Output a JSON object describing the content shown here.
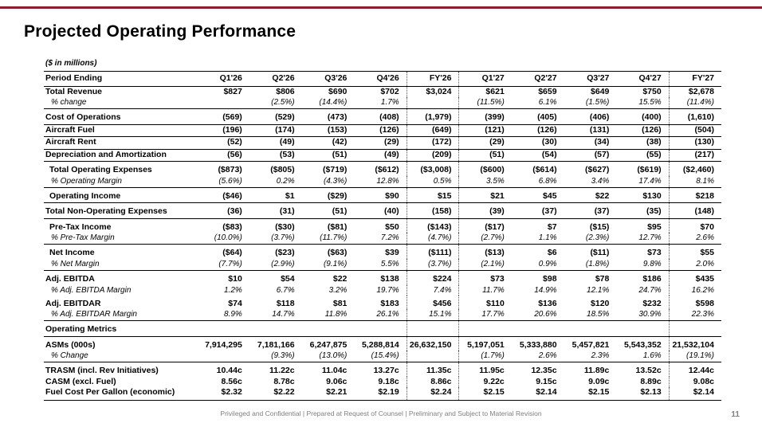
{
  "accent_color": "#8b1d2e",
  "title": "Projected Operating Performance",
  "units_note": "($ in millions)",
  "table": {
    "columns": [
      "Period Ending",
      "Q1'26",
      "Q2'26",
      "Q3'26",
      "Q4'26",
      "FY'26",
      "Q1'27",
      "Q2'27",
      "Q3'27",
      "Q4'27",
      "FY'27"
    ],
    "rows": [
      {
        "label": "Total Revenue",
        "type": "data",
        "values": [
          "$827",
          "$806",
          "$690",
          "$702",
          "$3,024",
          "$621",
          "$659",
          "$649",
          "$750",
          "$2,678"
        ]
      },
      {
        "label": "% change",
        "type": "pct",
        "rule_below": true,
        "values": [
          "",
          "(2.5%)",
          "(14.4%)",
          "1.7%",
          "",
          "(11.5%)",
          "6.1%",
          "(1.5%)",
          "15.5%",
          "(11.4%)"
        ]
      },
      {
        "label": "Cost of Operations",
        "type": "data",
        "gap": true,
        "rule_below": true,
        "values": [
          "(569)",
          "(529)",
          "(473)",
          "(408)",
          "(1,979)",
          "(399)",
          "(405)",
          "(406)",
          "(400)",
          "(1,610)"
        ]
      },
      {
        "label": "Aircraft Fuel",
        "type": "data",
        "rule_below": true,
        "values": [
          "(196)",
          "(174)",
          "(153)",
          "(126)",
          "(649)",
          "(121)",
          "(126)",
          "(131)",
          "(126)",
          "(504)"
        ]
      },
      {
        "label": "Aircraft Rent",
        "type": "data",
        "rule_below": true,
        "values": [
          "(52)",
          "(49)",
          "(42)",
          "(29)",
          "(172)",
          "(29)",
          "(30)",
          "(34)",
          "(38)",
          "(130)"
        ]
      },
      {
        "label": "Depreciation and Amortization",
        "type": "data",
        "rule_below": true,
        "values": [
          "(56)",
          "(53)",
          "(51)",
          "(49)",
          "(209)",
          "(51)",
          "(54)",
          "(57)",
          "(55)",
          "(217)"
        ]
      },
      {
        "label": "Total Operating Expenses",
        "type": "subtotal",
        "gap": true,
        "values": [
          "($873)",
          "($805)",
          "($719)",
          "($612)",
          "($3,008)",
          "($600)",
          "($614)",
          "($627)",
          "($619)",
          "($2,460)"
        ]
      },
      {
        "label": "% Operating Margin",
        "type": "pct",
        "rule_below": true,
        "values": [
          "(5.6%)",
          "0.2%",
          "(4.3%)",
          "12.8%",
          "0.5%",
          "3.5%",
          "6.8%",
          "3.4%",
          "17.4%",
          "8.1%"
        ]
      },
      {
        "label": "Operating Income",
        "type": "subtotal",
        "gap": true,
        "rule_below": true,
        "values": [
          "($46)",
          "$1",
          "($29)",
          "$90",
          "$15",
          "$21",
          "$45",
          "$22",
          "$130",
          "$218"
        ]
      },
      {
        "label": "Total Non-Operating Expenses",
        "type": "data",
        "gap": true,
        "rule_below": true,
        "values": [
          "(36)",
          "(31)",
          "(51)",
          "(40)",
          "(158)",
          "(39)",
          "(37)",
          "(37)",
          "(35)",
          "(148)"
        ]
      },
      {
        "label": "Pre-Tax Income",
        "type": "subtotal",
        "gap": true,
        "values": [
          "($83)",
          "($30)",
          "($81)",
          "$50",
          "($143)",
          "($17)",
          "$7",
          "($15)",
          "$95",
          "$70"
        ]
      },
      {
        "label": "% Pre-Tax Margin",
        "type": "pct",
        "rule_below": true,
        "values": [
          "(10.0%)",
          "(3.7%)",
          "(11.7%)",
          "7.2%",
          "(4.7%)",
          "(2.7%)",
          "1.1%",
          "(2.3%)",
          "12.7%",
          "2.6%"
        ]
      },
      {
        "label": "Net Income",
        "type": "subtotal",
        "gap": true,
        "values": [
          "($64)",
          "($23)",
          "($63)",
          "$39",
          "($111)",
          "($13)",
          "$6",
          "($11)",
          "$73",
          "$55"
        ]
      },
      {
        "label": "% Net Margin",
        "type": "pct",
        "rule_below": true,
        "values": [
          "(7.7%)",
          "(2.9%)",
          "(9.1%)",
          "5.5%",
          "(3.7%)",
          "(2.1%)",
          "0.9%",
          "(1.8%)",
          "9.8%",
          "2.0%"
        ]
      },
      {
        "label": "Adj. EBITDA",
        "type": "data",
        "gap": true,
        "values": [
          "$10",
          "$54",
          "$22",
          "$138",
          "$224",
          "$73",
          "$98",
          "$78",
          "$186",
          "$435"
        ]
      },
      {
        "label": "% Adj. EBITDA Margin",
        "type": "pct",
        "values": [
          "1.2%",
          "6.7%",
          "3.2%",
          "19.7%",
          "7.4%",
          "11.7%",
          "14.9%",
          "12.1%",
          "24.7%",
          "16.2%"
        ]
      },
      {
        "label": "Adj. EBITDAR",
        "type": "data",
        "gap": true,
        "values": [
          "$74",
          "$118",
          "$81",
          "$183",
          "$456",
          "$110",
          "$136",
          "$120",
          "$232",
          "$598"
        ]
      },
      {
        "label": "% Adj. EBITDAR Margin",
        "type": "pct",
        "rule_below": true,
        "values": [
          "8.9%",
          "14.7%",
          "11.8%",
          "26.1%",
          "15.1%",
          "17.7%",
          "20.6%",
          "18.5%",
          "30.9%",
          "22.3%"
        ]
      },
      {
        "label": "Operating Metrics",
        "type": "section",
        "gap": true,
        "rule_below": true,
        "values": [
          "",
          "",
          "",
          "",
          "",
          "",
          "",
          "",
          "",
          ""
        ]
      },
      {
        "label": "ASMs (000s)",
        "type": "data",
        "gap": true,
        "values": [
          "7,914,295",
          "7,181,166",
          "6,247,875",
          "5,288,814",
          "26,632,150",
          "5,197,051",
          "5,333,880",
          "5,457,821",
          "5,543,352",
          "21,532,104"
        ]
      },
      {
        "label": "% Change",
        "type": "pct",
        "rule_below": true,
        "values": [
          "",
          "(9.3%)",
          "(13.0%)",
          "(15.4%)",
          "",
          "(1.7%)",
          "2.6%",
          "2.3%",
          "1.6%",
          "(19.1%)"
        ]
      },
      {
        "label": "TRASM (incl. Rev Initiatives)",
        "type": "data",
        "gap": true,
        "values": [
          "10.44c",
          "11.22c",
          "11.04c",
          "13.27c",
          "11.35c",
          "11.95c",
          "12.35c",
          "11.89c",
          "13.52c",
          "12.44c"
        ]
      },
      {
        "label": "CASM (excl. Fuel)",
        "type": "data",
        "values": [
          "8.56c",
          "8.78c",
          "9.06c",
          "9.18c",
          "8.86c",
          "9.22c",
          "9.15c",
          "9.09c",
          "8.89c",
          "9.08c"
        ]
      },
      {
        "label": "Fuel Cost Per Gallon (economic)",
        "type": "data",
        "values": [
          "$2.32",
          "$2.22",
          "$2.21",
          "$2.19",
          "$2.24",
          "$2.15",
          "$2.14",
          "$2.15",
          "$2.13",
          "$2.14"
        ]
      }
    ]
  },
  "footer": {
    "text": "Privileged and Confidential | Prepared at Request of Counsel | Preliminary and Subject to Material Revision",
    "page": "11"
  }
}
